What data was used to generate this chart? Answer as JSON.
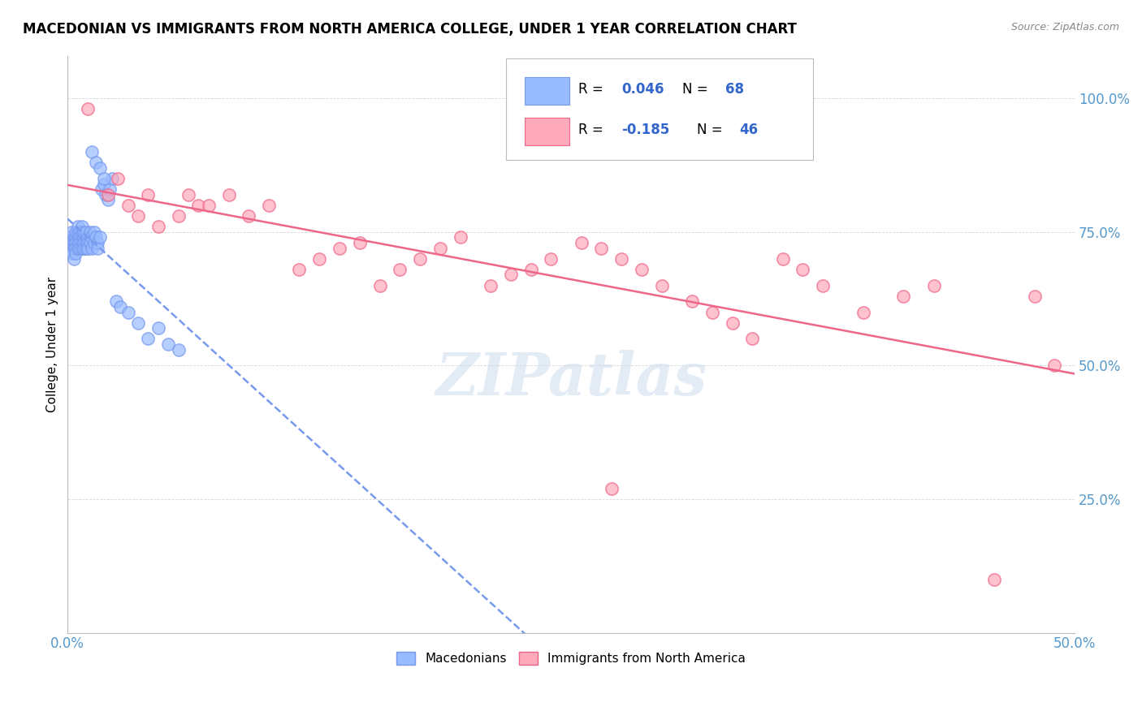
{
  "title": "MACEDONIAN VS IMMIGRANTS FROM NORTH AMERICA COLLEGE, UNDER 1 YEAR CORRELATION CHART",
  "source": "Source: ZipAtlas.com",
  "ylabel": "College, Under 1 year",
  "xlim": [
    0.0,
    0.5
  ],
  "ylim": [
    0.0,
    1.08
  ],
  "blue_R": 0.046,
  "blue_N": 68,
  "pink_R": -0.185,
  "pink_N": 46,
  "blue_color": "#99BBFF",
  "pink_color": "#FFAABB",
  "blue_line_color": "#7799EE",
  "pink_line_color": "#EE6688",
  "watermark_text": "ZIPatlas",
  "legend_label_blue": "Macedonians",
  "legend_label_pink": "Immigrants from North America",
  "blue_x": [
    0.001,
    0.001,
    0.002,
    0.002,
    0.002,
    0.003,
    0.003,
    0.003,
    0.003,
    0.004,
    0.004,
    0.004,
    0.004,
    0.004,
    0.005,
    0.005,
    0.005,
    0.005,
    0.005,
    0.006,
    0.006,
    0.006,
    0.006,
    0.007,
    0.007,
    0.007,
    0.007,
    0.007,
    0.008,
    0.008,
    0.008,
    0.008,
    0.009,
    0.009,
    0.009,
    0.009,
    0.01,
    0.01,
    0.01,
    0.011,
    0.011,
    0.011,
    0.012,
    0.012,
    0.013,
    0.013,
    0.014,
    0.015,
    0.015,
    0.016,
    0.017,
    0.018,
    0.019,
    0.02,
    0.021,
    0.022,
    0.024,
    0.026,
    0.03,
    0.035,
    0.04,
    0.045,
    0.05,
    0.055,
    0.012,
    0.014,
    0.016,
    0.018
  ],
  "blue_y": [
    0.72,
    0.74,
    0.73,
    0.75,
    0.71,
    0.73,
    0.74,
    0.72,
    0.7,
    0.74,
    0.73,
    0.75,
    0.72,
    0.71,
    0.74,
    0.73,
    0.75,
    0.72,
    0.76,
    0.75,
    0.74,
    0.73,
    0.72,
    0.75,
    0.74,
    0.73,
    0.76,
    0.72,
    0.74,
    0.75,
    0.73,
    0.72,
    0.74,
    0.73,
    0.72,
    0.75,
    0.74,
    0.73,
    0.72,
    0.74,
    0.75,
    0.73,
    0.72,
    0.74,
    0.73,
    0.75,
    0.74,
    0.73,
    0.72,
    0.74,
    0.83,
    0.84,
    0.82,
    0.81,
    0.83,
    0.85,
    0.62,
    0.61,
    0.6,
    0.58,
    0.55,
    0.57,
    0.54,
    0.53,
    0.9,
    0.88,
    0.87,
    0.85
  ],
  "pink_x": [
    0.01,
    0.02,
    0.025,
    0.03,
    0.035,
    0.04,
    0.045,
    0.055,
    0.06,
    0.065,
    0.07,
    0.08,
    0.09,
    0.1,
    0.115,
    0.125,
    0.135,
    0.145,
    0.155,
    0.165,
    0.175,
    0.185,
    0.195,
    0.21,
    0.22,
    0.23,
    0.24,
    0.255,
    0.265,
    0.275,
    0.285,
    0.295,
    0.31,
    0.32,
    0.33,
    0.34,
    0.355,
    0.365,
    0.375,
    0.395,
    0.415,
    0.43,
    0.46,
    0.48,
    0.49,
    0.27
  ],
  "pink_y": [
    0.98,
    0.82,
    0.85,
    0.8,
    0.78,
    0.82,
    0.76,
    0.78,
    0.82,
    0.8,
    0.8,
    0.82,
    0.78,
    0.8,
    0.68,
    0.7,
    0.72,
    0.73,
    0.65,
    0.68,
    0.7,
    0.72,
    0.74,
    0.65,
    0.67,
    0.68,
    0.7,
    0.73,
    0.72,
    0.7,
    0.68,
    0.65,
    0.62,
    0.6,
    0.58,
    0.55,
    0.7,
    0.68,
    0.65,
    0.6,
    0.63,
    0.65,
    0.1,
    0.63,
    0.5,
    0.27
  ]
}
